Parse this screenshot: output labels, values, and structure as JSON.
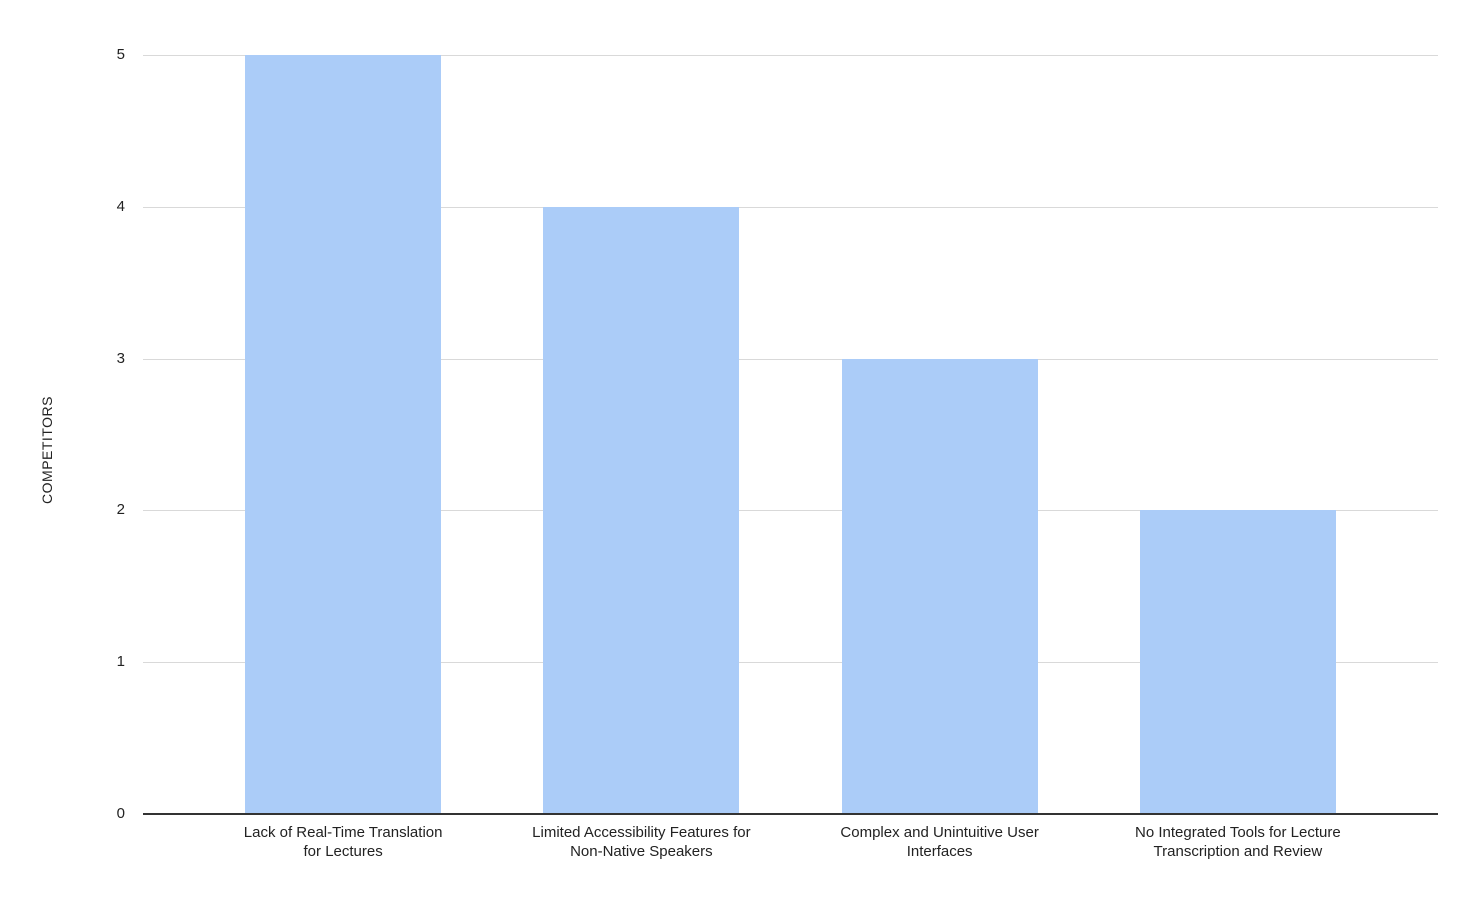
{
  "chart_data": {
    "type": "bar",
    "title": "",
    "categories": [
      "Lack of Real-Time Translation\nfor Lectures",
      "Limited Accessibility Features for\nNon-Native Speakers",
      "Complex and Unintuitive User\nInterfaces",
      "No Integrated Tools for Lecture\nTranscription and Review"
    ],
    "values": [
      5,
      4,
      3,
      2
    ],
    "xlabel": "",
    "ylabel": "COMPETITORS",
    "ylim": [
      0,
      5
    ],
    "yticks": [
      0,
      1,
      2,
      3,
      4,
      5
    ],
    "grid": "horizontal",
    "legend": "none",
    "colors": {
      "bar_fill": "#abccf8",
      "gridline": "#d9d9d9",
      "axis_line": "#333333",
      "label_text": "#222222",
      "background": "#ffffff"
    }
  }
}
